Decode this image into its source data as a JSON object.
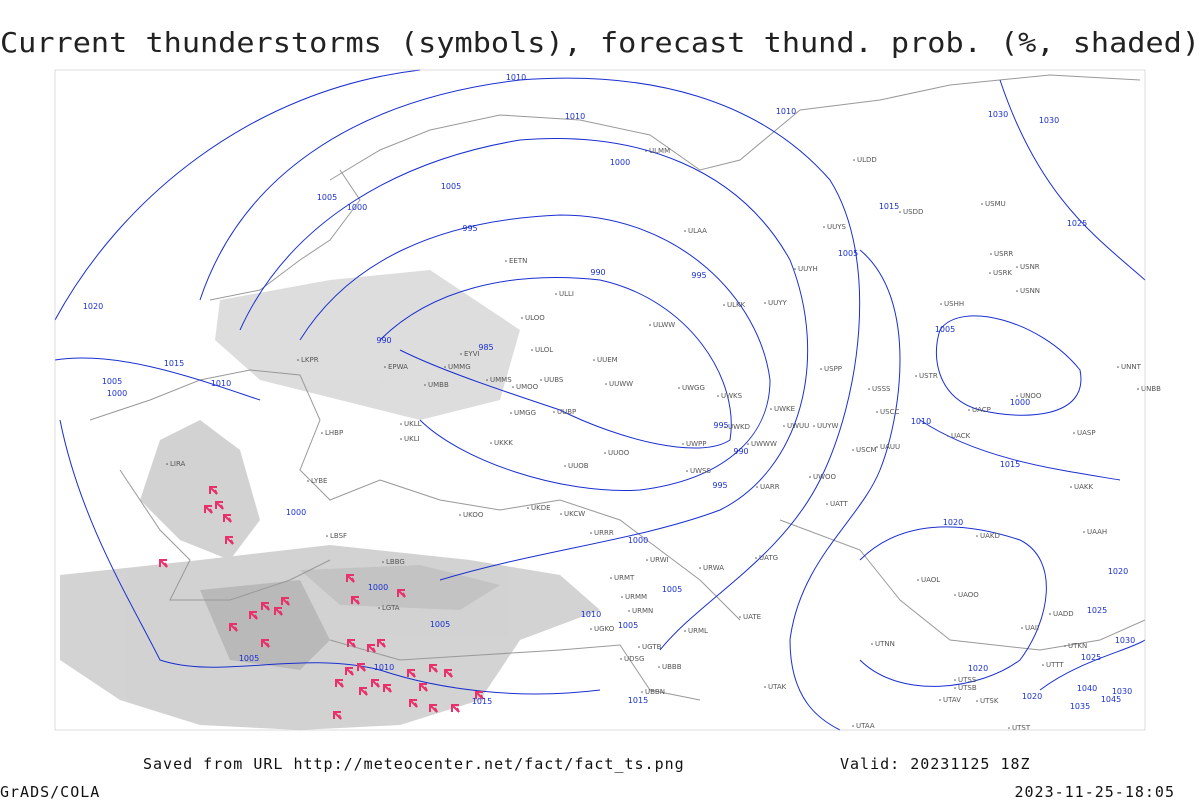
{
  "title": "Current thunderstorms (symbols), forecast thund. prob. (%, shaded)",
  "footer": {
    "source": "Saved from URL http://meteocenter.net/fact/fact_ts.png",
    "valid": "Valid: 20231125 18Z",
    "credit": "GrADS/COLA",
    "timestamp": "2023-11-25-18:05"
  },
  "isobar_labels": [
    "1010",
    "1010",
    "1000",
    "1005",
    "1005",
    "1000",
    "995",
    "990",
    "995",
    "1020",
    "990",
    "985",
    "1015",
    "1005",
    "1000",
    "1010",
    "995",
    "990",
    "995",
    "1000",
    "1000",
    "1000",
    "1005",
    "1010",
    "1005",
    "1005",
    "1005",
    "1010",
    "1015",
    "1015",
    "1010",
    "1005",
    "1015",
    "1005",
    "1000",
    "1010",
    "1015",
    "1020",
    "1025",
    "1030",
    "1030",
    "1020",
    "1025",
    "1030",
    "1020",
    "1025",
    "1040",
    "1030",
    "1035",
    "1045",
    "1020"
  ],
  "stations": [
    "LIRA",
    "LKPR",
    "EPWA",
    "UMMG",
    "UMBB",
    "EYVI",
    "UKLL",
    "UKLI",
    "LHBP",
    "LYBE",
    "LBSF",
    "LBBG",
    "LGTA",
    "UKKK",
    "UKOO",
    "UKDE",
    "UKCW",
    "URRR",
    "URWI",
    "URMT",
    "URMM",
    "URMN",
    "URML",
    "UGTB",
    "UBBB",
    "UDSG",
    "UGKO",
    "UBBN",
    "UTAK",
    "UTAA",
    "UATE",
    "UATG",
    "URWA",
    "UWWW",
    "UWPP",
    "UWSS",
    "UWKE",
    "UWKS",
    "UWKD",
    "UWGG",
    "UUWW",
    "UUEM",
    "UUOB",
    "UUOO",
    "UUBS",
    "UMOO",
    "UMMS",
    "UMGG",
    "UUBP",
    "ULOL",
    "ULOO",
    "ULLI",
    "EETN",
    "ULAA",
    "ULWW",
    "ULKK",
    "UUYY",
    "UUYH",
    "UUYS",
    "ULDD",
    "USDD",
    "USMU",
    "USRR",
    "USRK",
    "USNR",
    "USNN",
    "USHH",
    "USPP",
    "USSS",
    "USTR",
    "USCC",
    "USCM",
    "UAUU",
    "UATT",
    "UWOO",
    "UACK",
    "UACP",
    "UASP",
    "UAKK",
    "UAAH",
    "UAKD",
    "UAOL",
    "UAOO",
    "UADD",
    "UAII",
    "UTKN",
    "UTTT",
    "UTSS",
    "UTSB",
    "UTAV",
    "UTSK",
    "UTST",
    "UTNN",
    "UNBB",
    "UNNT",
    "UNOO",
    "UUYW",
    "UWUU",
    "UARR",
    "ULMM"
  ]
}
